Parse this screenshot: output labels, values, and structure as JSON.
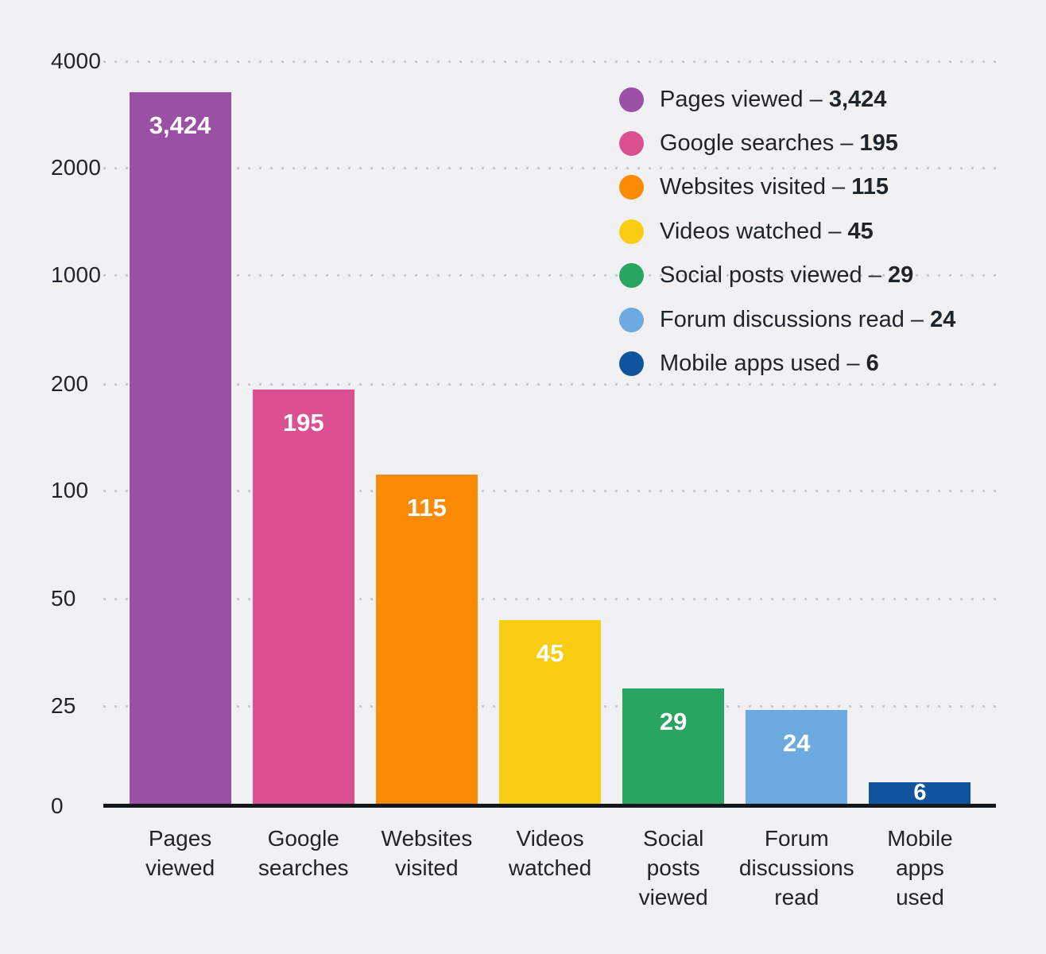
{
  "styles": {
    "background": "#F1F1F4",
    "text_color": "#1F242A",
    "grid_color": "#C7C9CD",
    "axis_color": "#14171B",
    "bar_value_color": "#FFFFFF"
  },
  "chart_data": {
    "type": "bar",
    "title": "",
    "categories": [
      "Pages viewed",
      "Google searches",
      "Websites visited",
      "Videos watched",
      "Social posts viewed",
      "Forum discussions read",
      "Mobile apps used"
    ],
    "category_lines": [
      [
        "Pages",
        "viewed"
      ],
      [
        "Google",
        "searches"
      ],
      [
        "Websites",
        "visited"
      ],
      [
        "Videos",
        "watched"
      ],
      [
        "Social",
        "posts",
        "viewed"
      ],
      [
        "Forum",
        "discussions",
        "read"
      ],
      [
        "Mobile",
        "apps",
        "used"
      ]
    ],
    "values": [
      3424,
      195,
      115,
      45,
      29,
      24,
      6
    ],
    "value_labels": [
      "3,424",
      "195",
      "115",
      "45",
      "29",
      "24",
      "6"
    ],
    "bar_colors": [
      "#9A50A4",
      "#DA5090",
      "#FB8A05",
      "#F9CD11",
      "#29A563",
      "#6CAADF",
      "#10549D"
    ],
    "y_ticks": [
      0,
      25,
      50,
      100,
      200,
      1000,
      2000,
      4000
    ],
    "y_tick_labels": [
      "0",
      "25",
      "50",
      "100",
      "200",
      "1000",
      "2000",
      "4000"
    ],
    "y_axis_scale": "non-linear (ticks evenly spaced, values interpolated between ticks)",
    "grid": "dotted horizontal gridlines at each tick except 0",
    "legend_position": "top-right",
    "legend": [
      {
        "label": "Pages viewed",
        "separator": "–",
        "value": "3,424",
        "color": "#9A50A4"
      },
      {
        "label": "Google searches",
        "separator": "–",
        "value": "195",
        "color": "#DA5090"
      },
      {
        "label": "Websites visited",
        "separator": "–",
        "value": "115",
        "color": "#FB8A05"
      },
      {
        "label": "Videos watched",
        "separator": "–",
        "value": "45",
        "color": "#F9CD11"
      },
      {
        "label": "Social posts viewed",
        "separator": "–",
        "value": "29",
        "color": "#29A563"
      },
      {
        "label": "Forum discussions read",
        "separator": "–",
        "value": "24",
        "color": "#6CAADF"
      },
      {
        "label": "Mobile apps used",
        "separator": "–",
        "value": "6",
        "color": "#10549D"
      }
    ]
  }
}
